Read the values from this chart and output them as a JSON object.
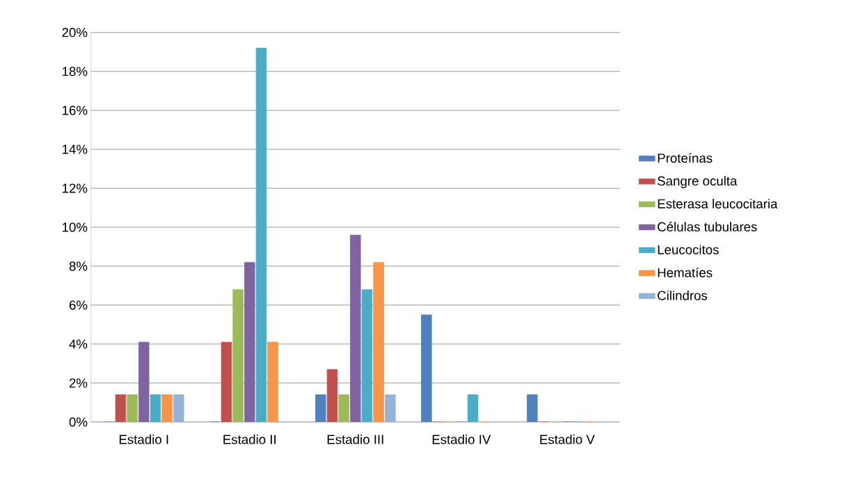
{
  "chart_data": {
    "type": "bar",
    "categories": [
      "Estadio I",
      "Estadio II",
      "Estadio III",
      "Estadio IV",
      "Estadio V"
    ],
    "series": [
      {
        "name": "Proteínas",
        "color": "#4f81bd",
        "values": [
          0,
          0,
          1.4,
          5.5,
          1.4
        ]
      },
      {
        "name": "Sangre oculta",
        "color": "#c0504d",
        "values": [
          1.4,
          4.1,
          2.7,
          0,
          0
        ]
      },
      {
        "name": "Esterasa leucocitaria",
        "color": "#9bbb59",
        "values": [
          1.4,
          6.8,
          1.4,
          0,
          0
        ]
      },
      {
        "name": "Células tubulares",
        "color": "#8064a2",
        "values": [
          4.1,
          8.2,
          9.6,
          0,
          0
        ]
      },
      {
        "name": "Leucocitos",
        "color": "#4bacc6",
        "values": [
          1.4,
          19.2,
          6.8,
          1.4,
          0
        ]
      },
      {
        "name": "Hematíes",
        "color": "#f79646",
        "values": [
          1.4,
          4.1,
          8.2,
          0,
          0
        ]
      },
      {
        "name": "Cilindros",
        "color": "#95b3d7",
        "values": [
          1.4,
          0,
          1.4,
          0,
          0
        ]
      }
    ],
    "ylim": [
      0,
      20
    ],
    "yticks": [
      {
        "value": 0,
        "label": "0%"
      },
      {
        "value": 2,
        "label": "2%"
      },
      {
        "value": 4,
        "label": "4%"
      },
      {
        "value": 6,
        "label": "6%"
      },
      {
        "value": 8,
        "label": "8%"
      },
      {
        "value": 10,
        "label": "10%"
      },
      {
        "value": 12,
        "label": "12%"
      },
      {
        "value": 14,
        "label": "14%"
      },
      {
        "value": 16,
        "label": "16%"
      },
      {
        "value": 18,
        "label": "18%"
      },
      {
        "value": 20,
        "label": "20%"
      }
    ],
    "grid": "y",
    "legend": "right"
  }
}
